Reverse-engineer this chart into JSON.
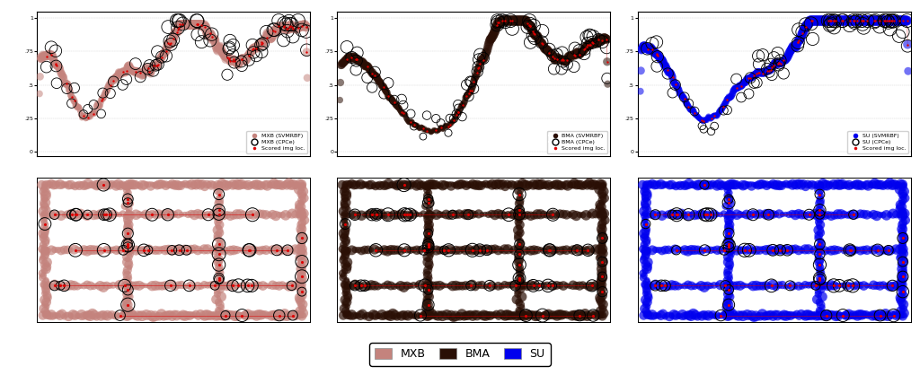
{
  "fig_width": 10.24,
  "fig_height": 4.18,
  "dpi": 100,
  "colors": {
    "MXB": "#c4837d",
    "BMA": "#2a0f05",
    "SU": "#0000ee",
    "scored_line": "#dd0000",
    "legend_bg": "#f0f0f0"
  },
  "bottom_legend": [
    {
      "label": "MXB",
      "color": "#c4837d"
    },
    {
      "label": "BMA",
      "color": "#2a0f05"
    },
    {
      "label": "SU",
      "color": "#0000ee"
    }
  ]
}
